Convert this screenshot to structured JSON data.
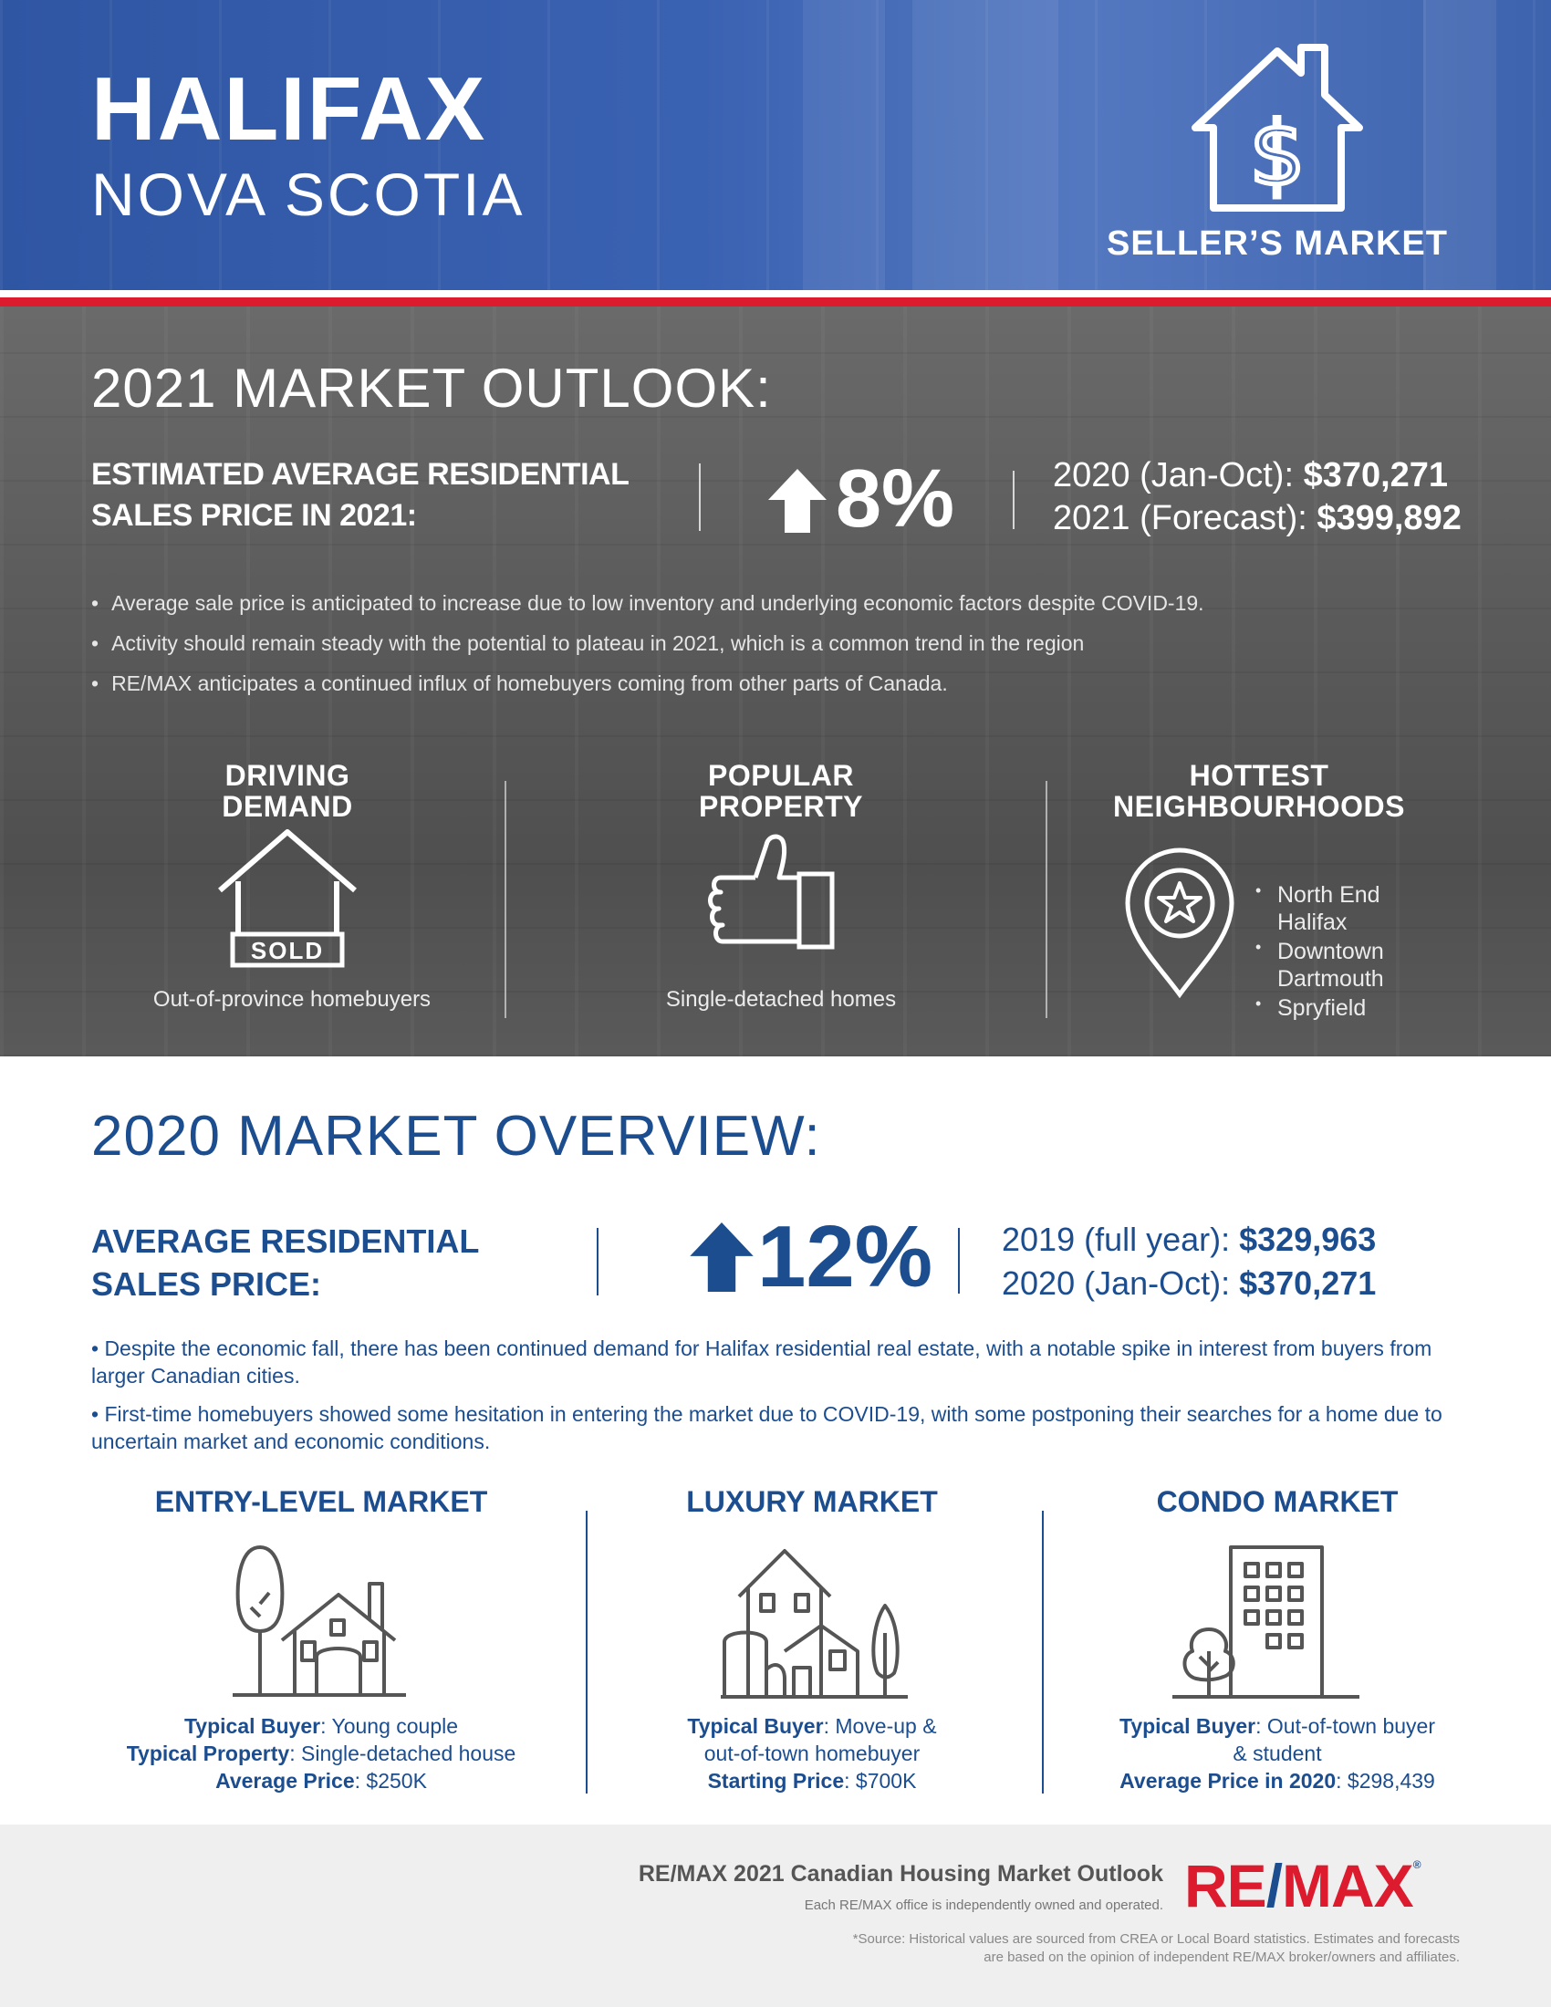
{
  "header": {
    "city": "HALIFAX",
    "province": "NOVA SCOTIA",
    "market_type": "SELLER’S MARKET"
  },
  "outlook": {
    "title": "2021 MARKET OUTLOOK:",
    "label_line1": "ESTIMATED AVERAGE RESIDENTIAL",
    "label_line2": "SALES PRICE IN 2021:",
    "change_pct": "8%",
    "price_2020_label": "2020 (Jan-Oct): ",
    "price_2020_value": "$370,271",
    "price_2021_label": "2021 (Forecast): ",
    "price_2021_value": "$399,892",
    "bullets": [
      "Average sale price is anticipated to increase due to low inventory and underlying economic factors despite COVID-19.",
      "Activity should remain steady with the potential to plateau in 2021, which is a common trend in the region",
      "RE/MAX anticipates a continued influx of homebuyers coming from other parts of Canada."
    ],
    "driving_demand": {
      "head_line1": "DRIVING",
      "head_line2": "DEMAND",
      "sign_text": "SOLD",
      "caption": "Out-of-province homebuyers"
    },
    "popular_property": {
      "head_line1": "POPULAR",
      "head_line2": "PROPERTY",
      "caption": "Single-detached homes"
    },
    "hottest_neighbourhoods": {
      "head_line1": "HOTTEST",
      "head_line2": "NEIGHBOURHOODS",
      "items": [
        "North End Halifax",
        "Downtown Dartmouth",
        "Spryfield"
      ]
    }
  },
  "overview": {
    "title": "2020 MARKET OVERVIEW:",
    "label_line1": "AVERAGE RESIDENTIAL",
    "label_line2": "SALES PRICE:",
    "change_pct": "12%",
    "price_2019_label": "2019 (full year): ",
    "price_2019_value": "$329,963",
    "price_2020_label": "2020 (Jan-Oct): ",
    "price_2020_value": "$370,271",
    "bullets": [
      "• Despite the economic fall, there has been continued demand for Halifax residential real estate, with a notable spike in interest from buyers from larger Canadian cities.",
      "• First-time homebuyers showed some hesitation in entering the market due to COVID-19, with some postponing their searches for a home due to uncertain market and economic conditions."
    ],
    "entry": {
      "head": "ENTRY-LEVEL MARKET",
      "buyer_label": "Typical Buyer",
      "buyer_value": ": Young couple",
      "property_label": "Typical Property",
      "property_value": ": Single-detached house",
      "price_label": "Average Price",
      "price_value": ": $250K"
    },
    "luxury": {
      "head": "LUXURY MARKET",
      "buyer_label": "Typical Buyer",
      "buyer_value_line1": ": Move-up &",
      "buyer_value_line2": "out-of-town homebuyer",
      "price_label": "Starting Price",
      "price_value": ": $700K"
    },
    "condo": {
      "head": "CONDO MARKET",
      "buyer_label": "Typical Buyer",
      "buyer_value_line1": ": Out-of-town buyer",
      "buyer_value_line2": "& student",
      "price_label": "Average Price in 2020",
      "price_value": ": $298,439"
    }
  },
  "footer": {
    "title": "RE/MAX 2021 Canadian Housing Market Outlook",
    "subtitle": "Each RE/MAX office is independently owned and operated.",
    "source_line1": "*Source: Historical values are sourced from CREA or Local Board statistics. Estimates and forecasts",
    "source_line2": "are based on the opinion of independent RE/MAX broker/owners and affiliates.",
    "logo_left": "RE",
    "logo_slash": "/",
    "logo_right": "MAX",
    "logo_mark": "®"
  },
  "colors": {
    "brand_blue": "#1b4d8f",
    "header_blue": "#3a62b2",
    "brand_red": "#dc1c2e",
    "dark_gray": "#5b5b5b"
  },
  "icons": [
    "house-dollar-icon",
    "up-arrow-icon",
    "sold-house-icon",
    "thumbs-up-icon",
    "map-pin-star-icon",
    "house-tree-icon",
    "luxury-house-icon",
    "condo-building-icon"
  ]
}
